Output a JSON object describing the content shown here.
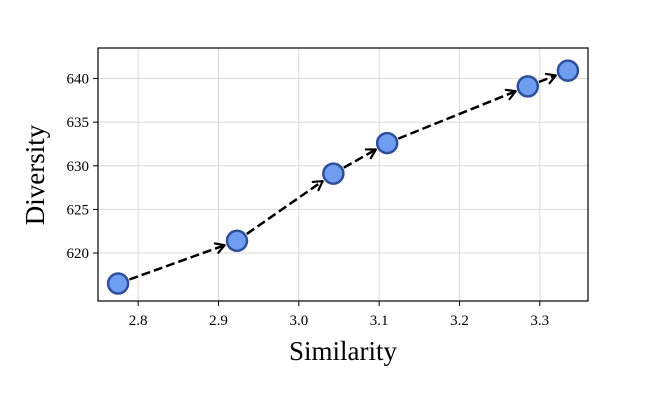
{
  "chart_data": {
    "type": "scatter",
    "xlabel": "Similarity",
    "ylabel": "Diversity",
    "xlim": [
      2.75,
      3.36
    ],
    "ylim": [
      614.5,
      643.5
    ],
    "xticks": [
      2.8,
      2.9,
      3.0,
      3.1,
      3.2,
      3.3
    ],
    "xtick_labels": [
      "2.8",
      "2.9",
      "3.0",
      "3.1",
      "3.2",
      "3.3"
    ],
    "yticks": [
      620,
      625,
      630,
      635,
      640
    ],
    "ytick_labels": [
      "620",
      "625",
      "630",
      "635",
      "640"
    ],
    "grid": true,
    "connector": "dashed arrows between consecutive points",
    "points": [
      {
        "x": 2.775,
        "y": 616.5
      },
      {
        "x": 2.923,
        "y": 621.4
      },
      {
        "x": 3.043,
        "y": 629.1
      },
      {
        "x": 3.11,
        "y": 632.6
      },
      {
        "x": 3.285,
        "y": 639.1
      },
      {
        "x": 3.335,
        "y": 640.9
      }
    ],
    "colors": {
      "marker_fill": "#6f9ef0",
      "marker_edge": "#2f4f9a",
      "arrow": "#000000",
      "grid": "#d9d9d9"
    }
  }
}
